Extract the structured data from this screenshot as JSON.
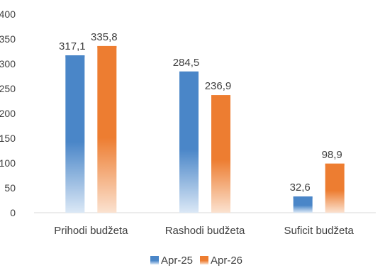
{
  "chart_data": {
    "type": "bar",
    "categories": [
      "Prihodi budžeta",
      "Rashodi budžeta",
      "Suficit budžeta"
    ],
    "series": [
      {
        "name": "Apr-25",
        "values": [
          317.1,
          284.5,
          32.6
        ],
        "labels": [
          "317,1",
          "284,5",
          "32,6"
        ],
        "color": "#4a86c8",
        "color_light": "#dbe8f6"
      },
      {
        "name": "Apr-26",
        "values": [
          335.8,
          236.9,
          98.9
        ],
        "labels": [
          "335,8",
          "236,9",
          "98,9"
        ],
        "color": "#ed7d31",
        "color_light": "#fbe2d0"
      }
    ],
    "y_ticks": [
      "0",
      "50",
      "100",
      "150",
      "200",
      "250",
      "300",
      "350",
      "400"
    ],
    "ylim": [
      0,
      400
    ],
    "grid": false,
    "legend_position": "bottom",
    "title": "",
    "xlabel": "",
    "ylabel": ""
  }
}
